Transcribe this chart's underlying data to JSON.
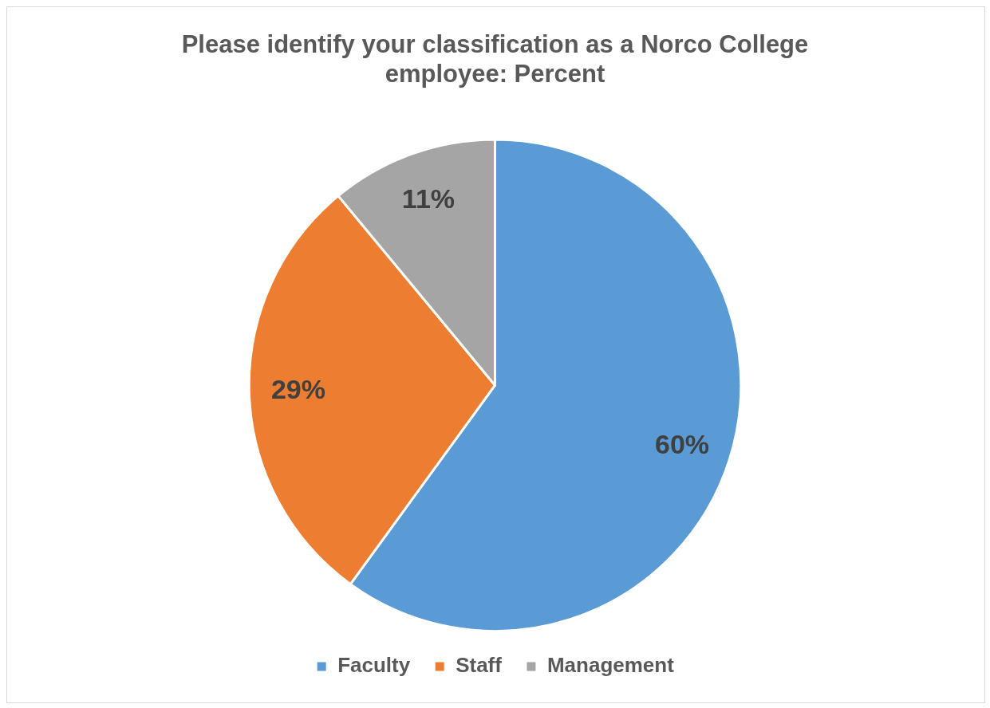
{
  "chart_data": {
    "type": "pie",
    "title": "Please identify your classification as a Norco College employee: Percent",
    "categories": [
      "Faculty",
      "Staff",
      "Management"
    ],
    "values": [
      60,
      29,
      11
    ],
    "colors": [
      "#5b9bd5",
      "#ed7d31",
      "#a5a5a5"
    ],
    "value_labels": [
      "60%",
      "29%",
      "11%"
    ],
    "legend": "bottom"
  }
}
